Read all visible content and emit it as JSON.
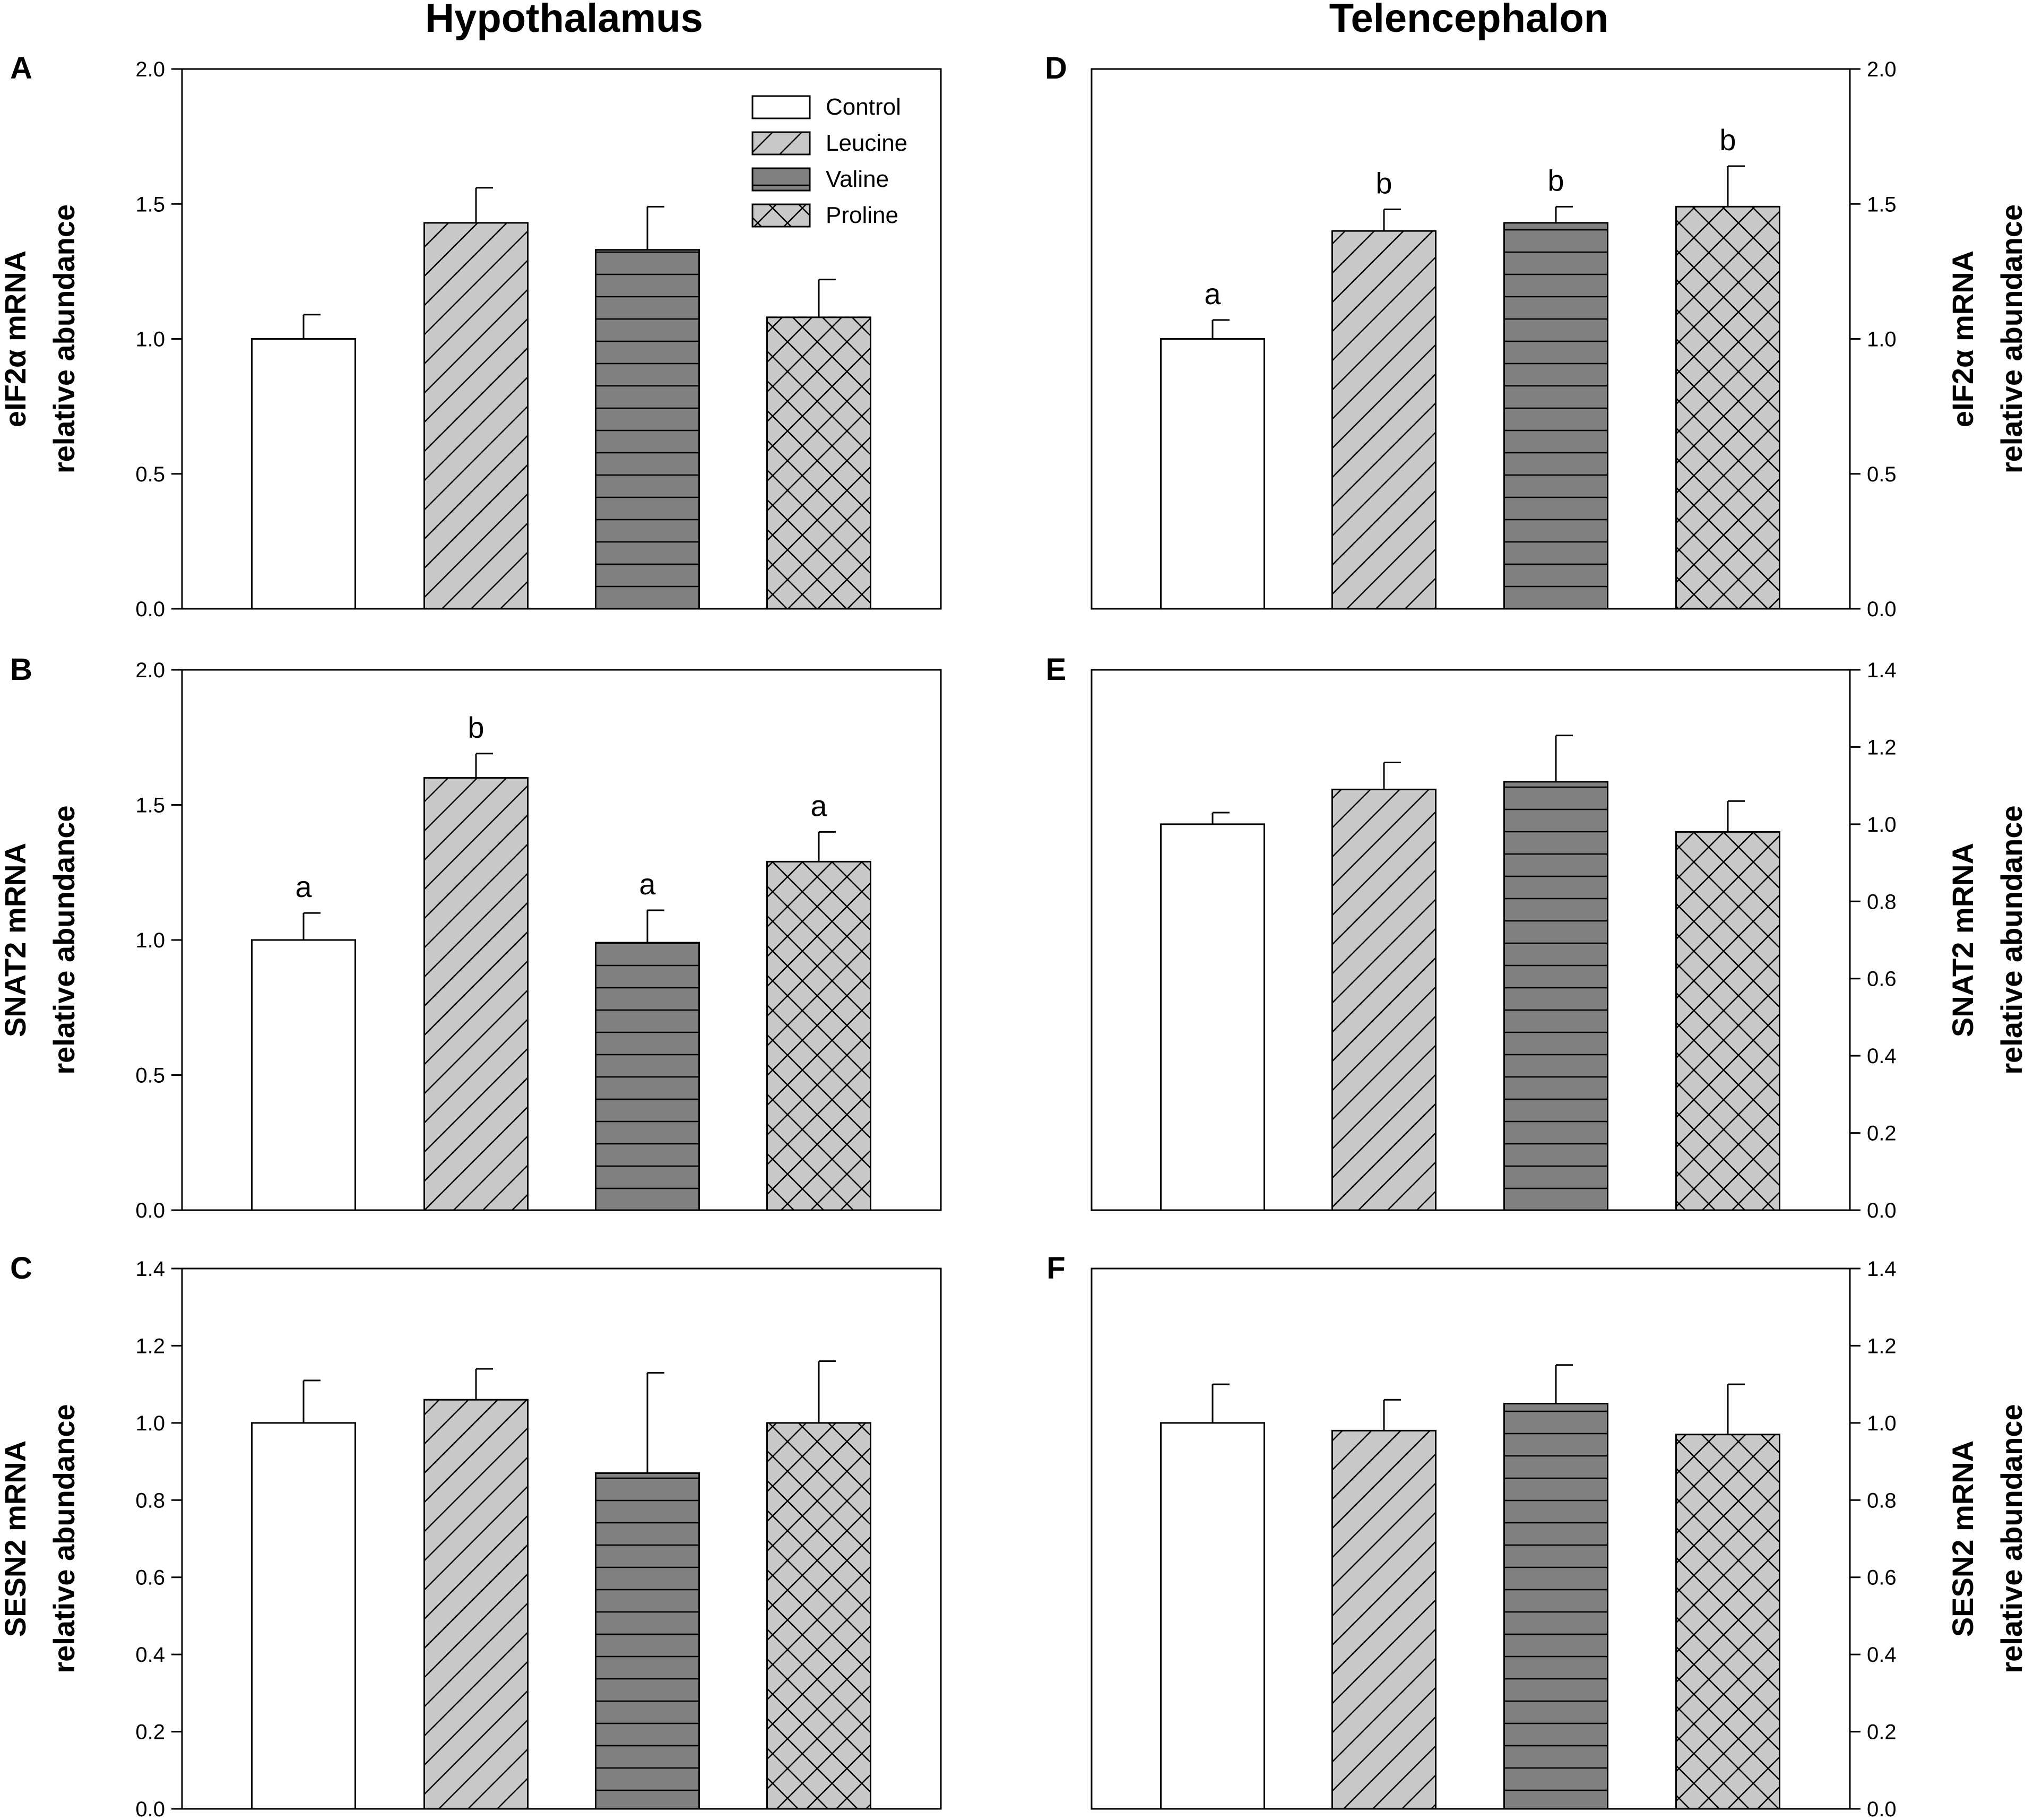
{
  "columns": {
    "left_title": "Hypothalamus",
    "right_title": "Telencephalon"
  },
  "legend": {
    "entries": [
      "Control",
      "Leucine",
      "Valine",
      "Proline"
    ]
  },
  "colors": {
    "control_fill": "#ffffff",
    "leucine_fill": "#c8c8c8",
    "valine_fill": "#808080",
    "proline_fill": "#c8c8c8",
    "stroke": "#000000"
  },
  "chart_data": [
    {
      "panel": "A",
      "region": "Hypothalamus",
      "type": "bar",
      "ylabel_line1": "eIF2α mRNA",
      "ylabel_line2": "relative abundance",
      "categories": [
        "Control",
        "Leucine",
        "Valine",
        "Proline"
      ],
      "values": [
        1.0,
        1.43,
        1.33,
        1.08
      ],
      "errors": [
        0.09,
        0.13,
        0.16,
        0.14
      ],
      "letters": [
        "",
        "",
        "",
        ""
      ],
      "ylim": [
        0,
        2.0
      ],
      "yticks": [
        "0.0",
        "0.5",
        "1.0",
        "1.5",
        "2.0"
      ],
      "axis_side": "left"
    },
    {
      "panel": "B",
      "region": "Hypothalamus",
      "type": "bar",
      "ylabel_line1": "SNAT2 mRNA",
      "ylabel_line2": "relative abundance",
      "categories": [
        "Control",
        "Leucine",
        "Valine",
        "Proline"
      ],
      "values": [
        1.0,
        1.6,
        0.99,
        1.29
      ],
      "errors": [
        0.1,
        0.09,
        0.12,
        0.11
      ],
      "letters": [
        "a",
        "b",
        "a",
        "a"
      ],
      "ylim": [
        0,
        2.0
      ],
      "yticks": [
        "0.0",
        "0.5",
        "1.0",
        "1.5",
        "2.0"
      ],
      "axis_side": "left"
    },
    {
      "panel": "C",
      "region": "Hypothalamus",
      "type": "bar",
      "ylabel_line1": "SESN2 mRNA",
      "ylabel_line2": "relative abundance",
      "categories": [
        "Control",
        "Leucine",
        "Valine",
        "Proline"
      ],
      "values": [
        1.0,
        1.06,
        0.87,
        1.0
      ],
      "errors": [
        0.11,
        0.08,
        0.26,
        0.16
      ],
      "letters": [
        "",
        "",
        "",
        ""
      ],
      "ylim": [
        0,
        1.4
      ],
      "yticks": [
        "0.0",
        "0.2",
        "0.4",
        "0.6",
        "0.8",
        "1.0",
        "1.2",
        "1.4"
      ],
      "axis_side": "left"
    },
    {
      "panel": "D",
      "region": "Telencephalon",
      "type": "bar",
      "ylabel_line1": "eIF2α mRNA",
      "ylabel_line2": "relative abundance",
      "categories": [
        "Control",
        "Leucine",
        "Valine",
        "Proline"
      ],
      "values": [
        1.0,
        1.4,
        1.43,
        1.49
      ],
      "errors": [
        0.07,
        0.08,
        0.06,
        0.15
      ],
      "letters": [
        "a",
        "b",
        "b",
        "b"
      ],
      "ylim": [
        0,
        2.0
      ],
      "yticks": [
        "0.0",
        "0.5",
        "1.0",
        "1.5",
        "2.0"
      ],
      "axis_side": "right"
    },
    {
      "panel": "E",
      "region": "Telencephalon",
      "type": "bar",
      "ylabel_line1": "SNAT2 mRNA",
      "ylabel_line2": "relative abundance",
      "categories": [
        "Control",
        "Leucine",
        "Valine",
        "Proline"
      ],
      "values": [
        1.0,
        1.09,
        1.11,
        0.98
      ],
      "errors": [
        0.03,
        0.07,
        0.12,
        0.08
      ],
      "letters": [
        "",
        "",
        "",
        ""
      ],
      "ylim": [
        0,
        1.4
      ],
      "yticks": [
        "0.0",
        "0.2",
        "0.4",
        "0.6",
        "0.8",
        "1.0",
        "1.2",
        "1.4"
      ],
      "axis_side": "right"
    },
    {
      "panel": "F",
      "region": "Telencephalon",
      "type": "bar",
      "ylabel_line1": "SESN2 mRNA",
      "ylabel_line2": "relative abundance",
      "categories": [
        "Control",
        "Leucine",
        "Valine",
        "Proline"
      ],
      "values": [
        1.0,
        0.98,
        1.05,
        0.97
      ],
      "errors": [
        0.1,
        0.08,
        0.1,
        0.13
      ],
      "letters": [
        "",
        "",
        "",
        ""
      ],
      "ylim": [
        0,
        1.4
      ],
      "yticks": [
        "0.0",
        "0.2",
        "0.4",
        "0.6",
        "0.8",
        "1.0",
        "1.2",
        "1.4"
      ],
      "axis_side": "right"
    }
  ]
}
